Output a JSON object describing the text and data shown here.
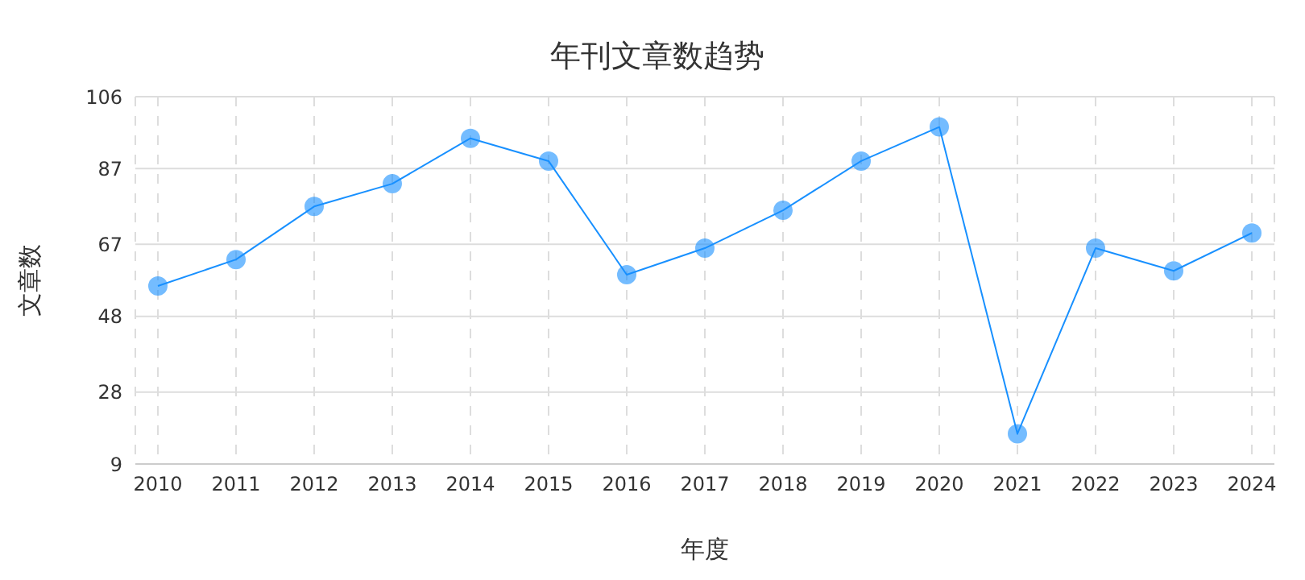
{
  "chart_data": {
    "type": "line",
    "title": "年刊文章数趋势",
    "xlabel": "年度",
    "ylabel": "文章数",
    "categories": [
      "2010",
      "2011",
      "2012",
      "2013",
      "2014",
      "2015",
      "2016",
      "2017",
      "2018",
      "2019",
      "2020",
      "2021",
      "2022",
      "2023",
      "2024"
    ],
    "series": [
      {
        "color": "#1890ff",
        "values": [
          56,
          63,
          77,
          83,
          95,
          89,
          59,
          66,
          76,
          89,
          98,
          17,
          66,
          60,
          70
        ]
      }
    ],
    "ylim": [
      9,
      106
    ],
    "yticks": [
      9,
      28,
      48,
      67,
      87,
      106
    ],
    "grid": true,
    "marker": "circle",
    "line_style": "solid"
  }
}
